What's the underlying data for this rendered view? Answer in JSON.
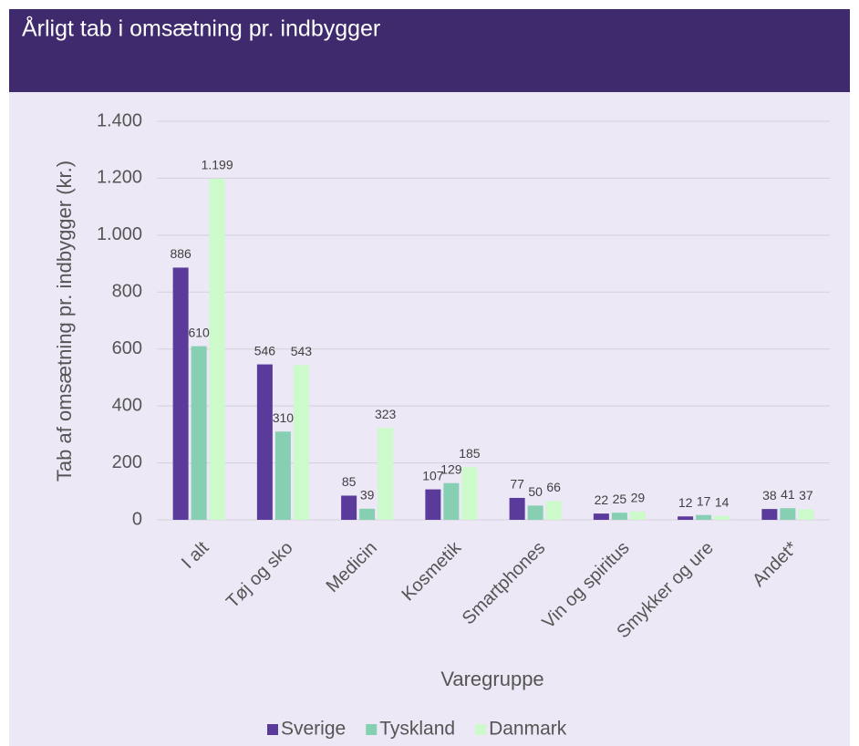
{
  "chart_data": {
    "type": "bar",
    "title": "Årligt tab i omsætning pr. indbygger",
    "x_label": "Varegruppe",
    "y_label": "Tab af omsætning pr. indbygger (kr.)",
    "categories": [
      "I alt",
      "Tøj og sko",
      "Medicin",
      "Kosmetik",
      "Smartphones",
      "Vin og spiritus",
      "Smykker og ure",
      "Andet*"
    ],
    "series": [
      {
        "name": "Sverige",
        "color": "#5a3b9c",
        "values": [
          886,
          546,
          85,
          107,
          77,
          22,
          12,
          38
        ]
      },
      {
        "name": "Tyskland",
        "color": "#86cfb2",
        "values": [
          610,
          310,
          39,
          129,
          50,
          25,
          17,
          41
        ]
      },
      {
        "name": "Danmark",
        "color": "#ccfacb",
        "values": [
          1199,
          543,
          323,
          185,
          66,
          29,
          14,
          37
        ],
        "value_labels": [
          "1.199",
          "543",
          "323",
          "185",
          "66",
          "29",
          "14",
          "37"
        ]
      }
    ],
    "ylim": [
      0,
      1400
    ],
    "yticks": [
      0,
      200,
      400,
      600,
      800,
      {
        "value": 1000,
        "label": "1.000"
      },
      {
        "value": 1200,
        "label": "1.200"
      },
      {
        "value": 1400,
        "label": "1.400"
      }
    ],
    "grid": true,
    "legend": "bottom"
  }
}
